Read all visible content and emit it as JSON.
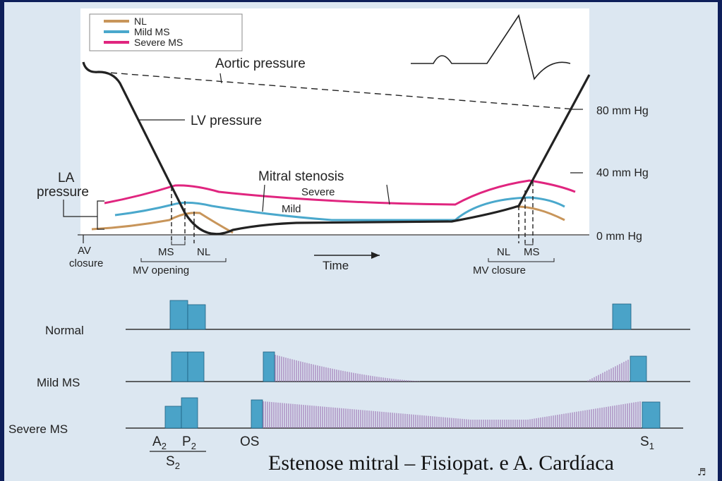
{
  "legend": {
    "items": [
      {
        "label": "NL",
        "color": "#c8955a"
      },
      {
        "label": "Mild MS",
        "color": "#4aa8cc"
      },
      {
        "label": "Severe MS",
        "color": "#e0257f"
      }
    ]
  },
  "upper": {
    "aortic_label": "Aortic pressure",
    "lv_label": "LV pressure",
    "la_label_line1": "LA",
    "la_label_line2": "pressure",
    "mitral_label": "Mitral stenosis",
    "severe_label": "Severe",
    "mild_label": "Mild",
    "y_ticks": [
      "80 mm Hg",
      "40 mm Hg",
      "0 mm Hg"
    ],
    "av_closure_line1": "AV",
    "av_closure_line2": "closure",
    "mv_open_ms": "MS",
    "mv_open_nl": "NL",
    "mv_opening": "MV opening",
    "time_label": "Time",
    "mv_close_nl": "NL",
    "mv_close_ms": "MS",
    "mv_closure": "MV closure"
  },
  "phonocardiogram": {
    "rows": [
      "Normal",
      "Mild MS",
      "Severe MS"
    ],
    "a2": "A",
    "a2_sub": "2",
    "p2": "P",
    "p2_sub": "2",
    "s2": "S",
    "s2_sub": "2",
    "os": "OS",
    "s1": "S",
    "s1_sub": "1"
  },
  "colors": {
    "nl": "#c8955a",
    "mild": "#4aa8cc",
    "severe": "#e0257f",
    "sound_bar": "#4aa3c8",
    "murmur": "#a07ab8"
  },
  "caption": "Estenose mitral – Fisiopat. e A. Cardíaca",
  "corner_icon": "speaker-icon"
}
